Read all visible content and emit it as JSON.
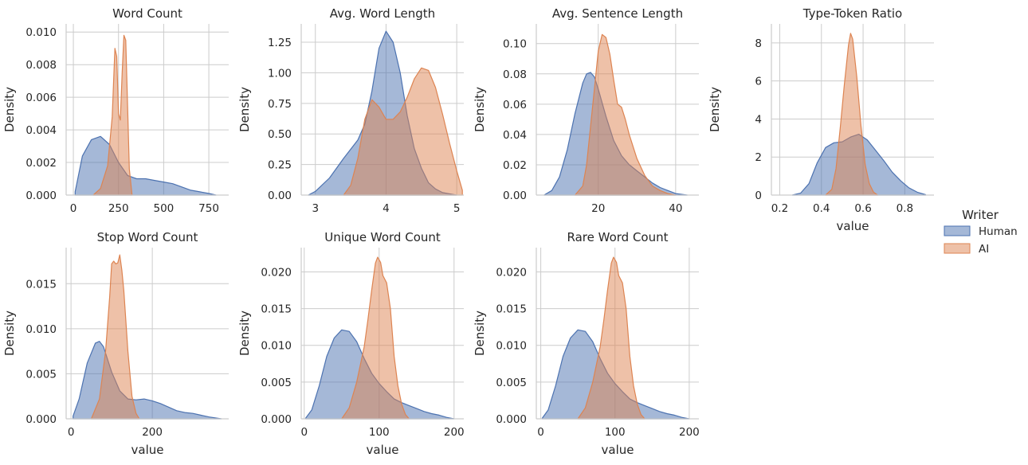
{
  "figure": {
    "legend": {
      "title": "Writer",
      "entries": [
        "Human",
        "AI"
      ],
      "placement": "right"
    }
  },
  "colors": {
    "human": "#4c72b0",
    "ai": "#dd8452",
    "grid": "#cccccc",
    "axis": "#cccccc"
  },
  "chart_data": [
    {
      "type": "area",
      "title": "Word Count",
      "xlabel": "",
      "ylabel": "Density",
      "xlim": [
        -40,
        860
      ],
      "ylim": [
        0,
        0.0105
      ],
      "xticks": [
        0,
        250,
        500,
        750
      ],
      "yticks": [
        0.0,
        0.002,
        0.004,
        0.006,
        0.008,
        0.01
      ],
      "ytick_labels": [
        "0.000",
        "0.002",
        "0.004",
        "0.006",
        "0.008",
        "0.010"
      ],
      "series": [
        {
          "name": "Human",
          "x": [
            10,
            50,
            100,
            150,
            200,
            250,
            300,
            350,
            400,
            450,
            500,
            550,
            600,
            650,
            700,
            750,
            790
          ],
          "y": [
            0.0002,
            0.0024,
            0.0034,
            0.0036,
            0.0031,
            0.002,
            0.0012,
            0.001,
            0.001,
            0.0009,
            0.0008,
            0.0007,
            0.0005,
            0.0003,
            0.0002,
            0.0001,
            0.0
          ]
        },
        {
          "name": "AI",
          "x": [
            110,
            150,
            190,
            215,
            230,
            240,
            250,
            260,
            270,
            280,
            290,
            300,
            310,
            325
          ],
          "y": [
            0.0,
            0.0004,
            0.0018,
            0.0048,
            0.009,
            0.0085,
            0.005,
            0.0046,
            0.0075,
            0.0098,
            0.0095,
            0.0055,
            0.0016,
            0.0
          ]
        }
      ]
    },
    {
      "type": "area",
      "title": "Avg. Word Length",
      "xlabel": "",
      "ylabel": "Density",
      "xlim": [
        2.8,
        5.1
      ],
      "ylim": [
        0,
        1.4
      ],
      "xticks": [
        3,
        4,
        5
      ],
      "yticks": [
        0.0,
        0.25,
        0.5,
        0.75,
        1.0,
        1.25
      ],
      "ytick_labels": [
        "0.00",
        "0.25",
        "0.50",
        "0.75",
        "1.00",
        "1.25"
      ],
      "series": [
        {
          "name": "Human",
          "x": [
            2.9,
            3.0,
            3.2,
            3.4,
            3.6,
            3.7,
            3.8,
            3.9,
            4.0,
            4.1,
            4.2,
            4.3,
            4.4,
            4.5,
            4.6,
            4.7,
            4.8,
            4.9,
            5.0
          ],
          "y": [
            0.0,
            0.03,
            0.14,
            0.3,
            0.45,
            0.58,
            0.85,
            1.2,
            1.34,
            1.25,
            1.0,
            0.65,
            0.38,
            0.22,
            0.1,
            0.05,
            0.02,
            0.01,
            0.0
          ]
        },
        {
          "name": "AI",
          "x": [
            3.4,
            3.5,
            3.6,
            3.7,
            3.8,
            3.9,
            4.0,
            4.1,
            4.2,
            4.3,
            4.4,
            4.5,
            4.6,
            4.7,
            4.8,
            4.9,
            5.0,
            5.08
          ],
          "y": [
            0.0,
            0.08,
            0.3,
            0.62,
            0.78,
            0.72,
            0.62,
            0.62,
            0.68,
            0.8,
            0.95,
            1.04,
            1.02,
            0.88,
            0.66,
            0.42,
            0.2,
            0.04
          ]
        }
      ]
    },
    {
      "type": "area",
      "title": "Avg. Sentence Length",
      "xlabel": "",
      "ylabel": "Density",
      "xlim": [
        4,
        46
      ],
      "ylim": [
        0,
        0.113
      ],
      "xticks": [
        20,
        40
      ],
      "yticks": [
        0.0,
        0.02,
        0.04,
        0.06,
        0.08,
        0.1
      ],
      "ytick_labels": [
        "0.00",
        "0.02",
        "0.04",
        "0.06",
        "0.08",
        "0.10"
      ],
      "series": [
        {
          "name": "Human",
          "x": [
            6,
            8,
            10,
            12,
            14,
            16,
            17,
            18,
            19,
            20,
            22,
            24,
            26,
            28,
            30,
            32,
            34,
            36,
            38,
            40,
            43
          ],
          "y": [
            0.0,
            0.003,
            0.012,
            0.03,
            0.054,
            0.074,
            0.08,
            0.081,
            0.078,
            0.07,
            0.052,
            0.036,
            0.026,
            0.02,
            0.016,
            0.012,
            0.008,
            0.005,
            0.003,
            0.001,
            0.0
          ]
        },
        {
          "name": "AI",
          "x": [
            14,
            16,
            17,
            18,
            19,
            20,
            21,
            22,
            23,
            24,
            25,
            26,
            27,
            28,
            29,
            30,
            32,
            34,
            36,
            38,
            40
          ],
          "y": [
            0.0,
            0.006,
            0.02,
            0.045,
            0.07,
            0.095,
            0.106,
            0.104,
            0.093,
            0.076,
            0.06,
            0.058,
            0.05,
            0.04,
            0.032,
            0.024,
            0.013,
            0.006,
            0.003,
            0.001,
            0.0
          ]
        }
      ]
    },
    {
      "type": "area",
      "title": "Type-Token Ratio",
      "xlabel": "value",
      "ylabel": "Density",
      "xlim": [
        0.16,
        0.94
      ],
      "ylim": [
        0,
        9.0
      ],
      "xticks": [
        0.2,
        0.4,
        0.6,
        0.8
      ],
      "yticks": [
        0,
        2,
        4,
        6,
        8
      ],
      "ytick_labels": [
        "0",
        "2",
        "4",
        "6",
        "8"
      ],
      "series": [
        {
          "name": "Human",
          "x": [
            0.26,
            0.3,
            0.34,
            0.38,
            0.42,
            0.46,
            0.5,
            0.54,
            0.58,
            0.62,
            0.66,
            0.7,
            0.74,
            0.78,
            0.82,
            0.86,
            0.9
          ],
          "y": [
            0.0,
            0.1,
            0.6,
            1.7,
            2.5,
            2.75,
            2.8,
            3.05,
            3.2,
            2.9,
            2.35,
            1.8,
            1.2,
            0.75,
            0.38,
            0.15,
            0.02
          ]
        },
        {
          "name": "AI",
          "x": [
            0.42,
            0.45,
            0.47,
            0.49,
            0.51,
            0.53,
            0.54,
            0.55,
            0.57,
            0.59,
            0.61,
            0.63,
            0.65,
            0.67
          ],
          "y": [
            0.0,
            0.3,
            1.4,
            3.5,
            5.8,
            7.9,
            8.5,
            8.2,
            6.2,
            3.6,
            1.6,
            0.6,
            0.15,
            0.0
          ]
        }
      ]
    },
    {
      "type": "area",
      "title": "Stop Word Count",
      "xlabel": "value",
      "ylabel": "Density",
      "xlim": [
        -12,
        388
      ],
      "ylim": [
        0,
        0.019
      ],
      "xticks": [
        0,
        200
      ],
      "yticks": [
        0.0,
        0.005,
        0.01,
        0.015
      ],
      "ytick_labels": [
        "0.000",
        "0.005",
        "0.010",
        "0.015"
      ],
      "series": [
        {
          "name": "Human",
          "x": [
            5,
            20,
            40,
            60,
            70,
            80,
            100,
            120,
            140,
            160,
            180,
            200,
            220,
            240,
            260,
            280,
            300,
            320,
            340,
            370
          ],
          "y": [
            0.0003,
            0.0022,
            0.0062,
            0.0084,
            0.0086,
            0.008,
            0.0052,
            0.0031,
            0.0022,
            0.0021,
            0.0022,
            0.002,
            0.0017,
            0.0013,
            0.0009,
            0.0007,
            0.0006,
            0.0004,
            0.0002,
            0.0
          ]
        },
        {
          "name": "AI",
          "x": [
            50,
            70,
            85,
            95,
            100,
            105,
            110,
            115,
            120,
            125,
            130,
            140,
            150,
            160,
            168
          ],
          "y": [
            0.0,
            0.0022,
            0.0075,
            0.0135,
            0.0172,
            0.0175,
            0.0172,
            0.0173,
            0.0182,
            0.0165,
            0.0142,
            0.0075,
            0.0025,
            0.0006,
            0.0
          ]
        }
      ]
    },
    {
      "type": "area",
      "title": "Unique Word Count",
      "xlabel": "value",
      "ylabel": "Density",
      "xlim": [
        -4,
        213
      ],
      "ylim": [
        0,
        0.0233
      ],
      "xticks": [
        0,
        100,
        200
      ],
      "yticks": [
        0.0,
        0.005,
        0.01,
        0.015,
        0.02
      ],
      "ytick_labels": [
        "0.000",
        "0.005",
        "0.010",
        "0.015",
        "0.020"
      ],
      "series": [
        {
          "name": "Human",
          "x": [
            2,
            10,
            20,
            30,
            40,
            50,
            60,
            70,
            80,
            90,
            100,
            110,
            120,
            130,
            140,
            150,
            160,
            170,
            180,
            190,
            200
          ],
          "y": [
            0.0001,
            0.0012,
            0.0045,
            0.0085,
            0.011,
            0.0121,
            0.0119,
            0.0105,
            0.0082,
            0.0062,
            0.0048,
            0.0037,
            0.0027,
            0.0022,
            0.0018,
            0.0014,
            0.001,
            0.0007,
            0.0005,
            0.0002,
            0.0
          ]
        },
        {
          "name": "AI",
          "x": [
            50,
            60,
            70,
            80,
            85,
            90,
            95,
            98,
            102,
            105,
            110,
            115,
            120,
            125,
            130,
            135,
            140
          ],
          "y": [
            0.0,
            0.0015,
            0.005,
            0.0098,
            0.0135,
            0.0175,
            0.0212,
            0.022,
            0.0213,
            0.0195,
            0.0185,
            0.015,
            0.0085,
            0.0045,
            0.002,
            0.0006,
            0.0
          ]
        }
      ]
    },
    {
      "type": "area",
      "title": "Rare Word Count",
      "xlabel": "value",
      "ylabel": "Density",
      "xlim": [
        -6,
        213
      ],
      "ylim": [
        0,
        0.0233
      ],
      "xticks": [
        0,
        100,
        200
      ],
      "yticks": [
        0.0,
        0.005,
        0.01,
        0.015,
        0.02
      ],
      "ytick_labels": [
        "0.000",
        "0.005",
        "0.010",
        "0.015",
        "0.020"
      ],
      "series": [
        {
          "name": "Human",
          "x": [
            2,
            10,
            20,
            30,
            40,
            50,
            60,
            70,
            80,
            90,
            100,
            110,
            120,
            130,
            140,
            150,
            160,
            170,
            180,
            190,
            200
          ],
          "y": [
            0.0001,
            0.0012,
            0.0045,
            0.0085,
            0.011,
            0.0121,
            0.0119,
            0.0105,
            0.0082,
            0.0062,
            0.0048,
            0.0037,
            0.0027,
            0.0022,
            0.0018,
            0.0014,
            0.001,
            0.0007,
            0.0005,
            0.0002,
            0.0
          ]
        },
        {
          "name": "AI",
          "x": [
            50,
            60,
            70,
            80,
            85,
            90,
            95,
            98,
            102,
            105,
            110,
            115,
            120,
            125,
            130,
            135,
            140
          ],
          "y": [
            0.0,
            0.0015,
            0.005,
            0.0098,
            0.0135,
            0.0175,
            0.0212,
            0.022,
            0.0213,
            0.0195,
            0.0185,
            0.015,
            0.0085,
            0.0045,
            0.002,
            0.0006,
            0.0
          ]
        }
      ]
    }
  ]
}
